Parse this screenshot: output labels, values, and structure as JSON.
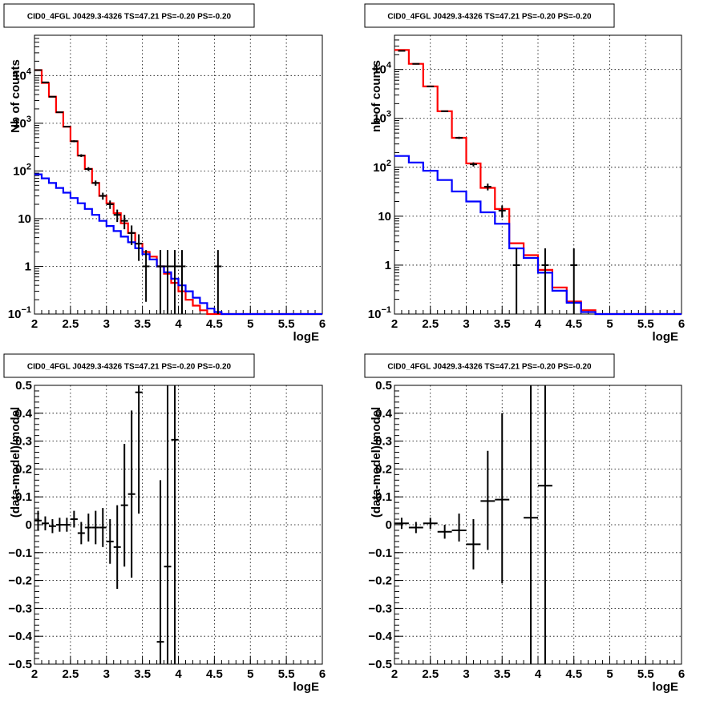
{
  "chart_data": [
    {
      "type": "histogram",
      "title": "CID0_4FGL J0429.3-4326 TS=47.21 PS=-0.20 PS=-0.20",
      "xlabel": "logE",
      "ylabel": "Nb of counts",
      "xlim": [
        2,
        6
      ],
      "ylim": [
        0.1,
        70000
      ],
      "yscale": "log",
      "grid": true,
      "x_ticks": [
        "2",
        "2.5",
        "3",
        "3.5",
        "4",
        "4.5",
        "5",
        "5.5",
        "6"
      ],
      "y_ticks": [
        {
          "value": 10000,
          "base": "10",
          "exp": "4"
        },
        {
          "value": 1000,
          "base": "10",
          "exp": "3"
        },
        {
          "value": 100,
          "base": "10",
          "exp": "2"
        },
        {
          "value": 10,
          "base": "10",
          "exp": ""
        },
        {
          "value": 1,
          "base": "1",
          "exp": ""
        },
        {
          "value": 0.1,
          "base": "10",
          "exp": "−1"
        }
      ],
      "bin_edges": [
        2,
        2.1,
        2.2,
        2.3,
        2.4,
        2.5,
        2.6,
        2.7,
        2.8,
        2.9,
        3,
        3.1,
        3.2,
        3.3,
        3.4,
        3.5,
        3.6,
        3.7,
        3.8,
        3.9,
        4,
        4.1,
        4.2,
        4.3,
        4.4,
        4.5,
        4.6,
        4.7,
        4.8,
        4.9,
        5,
        5.1,
        5.2,
        5.3,
        5.4,
        5.5,
        5.6,
        5.7,
        5.8,
        5.9,
        6
      ],
      "series": [
        {
          "color": "#ff0000",
          "values": [
            13000,
            7000,
            3600,
            1700,
            850,
            420,
            210,
            110,
            56,
            30,
            21,
            13,
            8,
            5,
            3,
            2,
            1.6,
            1,
            0.7,
            0.45,
            0.3,
            0.2,
            0.15,
            0.12,
            0.1,
            0.1,
            0.1,
            0.1,
            0.1,
            0.1,
            0.1,
            0.1,
            0.1,
            0.1,
            0.1,
            0.1,
            0.1,
            0.1,
            0.1,
            0.1
          ]
        },
        {
          "color": "#0000ff",
          "values": [
            85,
            70,
            56,
            44,
            35,
            27,
            21,
            16,
            12,
            9,
            7,
            5.5,
            4.2,
            3.2,
            2.4,
            1.8,
            1.4,
            1,
            0.75,
            0.55,
            0.4,
            0.3,
            0.22,
            0.17,
            0.13,
            0.11,
            0.1,
            0.1,
            0.1,
            0.1,
            0.1,
            0.1,
            0.1,
            0.1,
            0.1,
            0.1,
            0.1,
            0.1,
            0.1,
            0.1
          ]
        }
      ],
      "points": [
        {
          "x": 2.05,
          "y": 13000,
          "lo": 12800,
          "hi": 13200
        },
        {
          "x": 2.15,
          "y": 7200,
          "lo": 7050,
          "hi": 7350
        },
        {
          "x": 2.25,
          "y": 3600,
          "lo": 3500,
          "hi": 3700
        },
        {
          "x": 2.35,
          "y": 1700,
          "lo": 1650,
          "hi": 1750
        },
        {
          "x": 2.45,
          "y": 850,
          "lo": 820,
          "hi": 880
        },
        {
          "x": 2.55,
          "y": 420,
          "lo": 400,
          "hi": 440
        },
        {
          "x": 2.65,
          "y": 210,
          "lo": 196,
          "hi": 224
        },
        {
          "x": 2.75,
          "y": 110,
          "lo": 100,
          "hi": 120
        },
        {
          "x": 2.85,
          "y": 56,
          "lo": 49,
          "hi": 63
        },
        {
          "x": 2.95,
          "y": 30,
          "lo": 25,
          "hi": 35
        },
        {
          "x": 3.05,
          "y": 20,
          "lo": 16,
          "hi": 24
        },
        {
          "x": 3.15,
          "y": 12,
          "lo": 8.5,
          "hi": 15.5
        },
        {
          "x": 3.25,
          "y": 9,
          "lo": 6,
          "hi": 12
        },
        {
          "x": 3.35,
          "y": 5,
          "lo": 2.8,
          "hi": 7.2
        },
        {
          "x": 3.45,
          "y": 3,
          "lo": 1.3,
          "hi": 4.7
        },
        {
          "x": 3.55,
          "y": 1,
          "lo": 0.18,
          "hi": 2.2
        },
        {
          "x": 3.75,
          "y": 1,
          "lo": 0.1,
          "hi": 2.2
        },
        {
          "x": 3.85,
          "y": 1,
          "lo": 0.1,
          "hi": 2.2
        },
        {
          "x": 3.95,
          "y": 1,
          "lo": 0.1,
          "hi": 2.2
        },
        {
          "x": 4.05,
          "y": 1,
          "lo": 0.1,
          "hi": 2.2
        },
        {
          "x": 4.55,
          "y": 1,
          "lo": 0.1,
          "hi": 2.2
        }
      ]
    },
    {
      "type": "histogram",
      "title": "CID0_4FGL J0429.3-4326 TS=47.21 PS=-0.20 PS=-0.20",
      "xlabel": "logE",
      "ylabel": "nb of counts",
      "xlim": [
        2,
        6
      ],
      "ylim": [
        0.1,
        50000
      ],
      "yscale": "log",
      "grid": true,
      "x_ticks": [
        "2",
        "2.5",
        "3",
        "3.5",
        "4",
        "4.5",
        "5",
        "5.5",
        "6"
      ],
      "y_ticks": [
        {
          "value": 10000,
          "base": "10",
          "exp": "4"
        },
        {
          "value": 1000,
          "base": "10",
          "exp": "3"
        },
        {
          "value": 100,
          "base": "10",
          "exp": "2"
        },
        {
          "value": 10,
          "base": "10",
          "exp": ""
        },
        {
          "value": 1,
          "base": "1",
          "exp": ""
        },
        {
          "value": 0.1,
          "base": "10",
          "exp": "−1"
        }
      ],
      "bin_edges": [
        2,
        2.2,
        2.4,
        2.6,
        2.8,
        3,
        3.2,
        3.4,
        3.6,
        3.8,
        4,
        4.2,
        4.4,
        4.6,
        4.8,
        5,
        5.2,
        5.4,
        5.6,
        5.8,
        6
      ],
      "series": [
        {
          "color": "#ff0000",
          "values": [
            25000,
            13000,
            4500,
            1400,
            400,
            120,
            38,
            14,
            2.8,
            1.6,
            0.8,
            0.35,
            0.18,
            0.12,
            0.1,
            0.1,
            0.1,
            0.1,
            0.1,
            0.1
          ]
        },
        {
          "color": "#0000ff",
          "values": [
            170,
            125,
            85,
            55,
            32,
            20,
            12,
            7,
            2.2,
            1.4,
            0.7,
            0.3,
            0.17,
            0.11,
            0.1,
            0.1,
            0.1,
            0.1,
            0.1,
            0.1
          ]
        }
      ],
      "points": [
        {
          "x": 2.1,
          "y": 24000,
          "lo": 23800,
          "hi": 24200
        },
        {
          "x": 2.3,
          "y": 13000,
          "lo": 12850,
          "hi": 13150
        },
        {
          "x": 2.5,
          "y": 4500,
          "lo": 4400,
          "hi": 4600
        },
        {
          "x": 2.7,
          "y": 1400,
          "lo": 1360,
          "hi": 1440
        },
        {
          "x": 2.9,
          "y": 400,
          "lo": 380,
          "hi": 420
        },
        {
          "x": 3.1,
          "y": 115,
          "lo": 104,
          "hi": 126
        },
        {
          "x": 3.3,
          "y": 40,
          "lo": 33.7,
          "hi": 46.3
        },
        {
          "x": 3.5,
          "y": 13,
          "lo": 9.4,
          "hi": 16.6
        },
        {
          "x": 3.7,
          "y": 1,
          "lo": 0.1,
          "hi": 2.2
        },
        {
          "x": 4.1,
          "y": 1,
          "lo": 0.1,
          "hi": 2.2
        },
        {
          "x": 4.5,
          "y": 1,
          "lo": 0.1,
          "hi": 2.2
        }
      ]
    },
    {
      "type": "scatter",
      "title": "CID0_4FGL J0429.3-4326 TS=47.21 PS=-0.20 PS=-0.20",
      "xlabel": "logE",
      "ylabel": "(data-model)/model",
      "xlim": [
        2,
        6
      ],
      "ylim": [
        -0.5,
        0.5
      ],
      "grid": true,
      "x_ticks": [
        "2",
        "2.5",
        "3",
        "3.5",
        "4",
        "4.5",
        "5",
        "5.5",
        "6"
      ],
      "y_ticks": [
        "−0.5",
        "−0.4",
        "−0.3",
        "−0.2",
        "−0.1",
        "0",
        "0.1",
        "0.2",
        "0.3",
        "0.4",
        "0.5"
      ],
      "xerr": 0.05,
      "points": [
        {
          "x": 2.05,
          "y": 0.015,
          "lo": -0.02,
          "hi": 0.05
        },
        {
          "x": 2.15,
          "y": 0.005,
          "lo": -0.02,
          "hi": 0.03
        },
        {
          "x": 2.25,
          "y": -0.005,
          "lo": -0.03,
          "hi": 0.02
        },
        {
          "x": 2.35,
          "y": 0.0,
          "lo": -0.025,
          "hi": 0.025
        },
        {
          "x": 2.45,
          "y": 0.0,
          "lo": -0.025,
          "hi": 0.025
        },
        {
          "x": 2.55,
          "y": 0.02,
          "lo": -0.01,
          "hi": 0.05
        },
        {
          "x": 2.65,
          "y": -0.03,
          "lo": -0.07,
          "hi": 0.01
        },
        {
          "x": 2.75,
          "y": -0.01,
          "lo": -0.06,
          "hi": 0.04
        },
        {
          "x": 2.85,
          "y": -0.01,
          "lo": -0.07,
          "hi": 0.05
        },
        {
          "x": 2.95,
          "y": -0.01,
          "lo": -0.08,
          "hi": 0.06
        },
        {
          "x": 3.05,
          "y": -0.06,
          "lo": -0.14,
          "hi": 0.02
        },
        {
          "x": 3.15,
          "y": -0.08,
          "lo": -0.23,
          "hi": 0.07
        },
        {
          "x": 3.25,
          "y": 0.07,
          "lo": -0.15,
          "hi": 0.29
        },
        {
          "x": 3.35,
          "y": 0.11,
          "lo": -0.19,
          "hi": 0.41
        },
        {
          "x": 3.45,
          "y": 0.475,
          "lo": 0.04,
          "hi": 0.5
        },
        {
          "x": 3.75,
          "y": -0.42,
          "lo": -0.5,
          "hi": 0.16
        },
        {
          "x": 3.85,
          "y": -0.15,
          "lo": -0.5,
          "hi": 0.5
        },
        {
          "x": 3.95,
          "y": 0.305,
          "lo": -0.5,
          "hi": 0.5
        }
      ]
    },
    {
      "type": "scatter",
      "title": "CID0_4FGL J0429.3-4326 TS=47.21 PS=-0.20 PS=-0.20",
      "xlabel": "logE",
      "ylabel": "(data-model)/model",
      "xlim": [
        2,
        6
      ],
      "ylim": [
        -0.5,
        0.5
      ],
      "grid": true,
      "x_ticks": [
        "2",
        "2.5",
        "3",
        "3.5",
        "4",
        "4.5",
        "5",
        "5.5",
        "6"
      ],
      "y_ticks": [
        "−0.5",
        "−0.4",
        "−0.3",
        "−0.2",
        "−0.1",
        "0",
        "0.1",
        "0.2",
        "0.3",
        "0.4",
        "0.5"
      ],
      "xerr": 0.1,
      "points": [
        {
          "x": 2.1,
          "y": 0.005,
          "lo": -0.015,
          "hi": 0.025
        },
        {
          "x": 2.3,
          "y": -0.01,
          "lo": -0.03,
          "hi": 0.01
        },
        {
          "x": 2.5,
          "y": 0.005,
          "lo": -0.015,
          "hi": 0.025
        },
        {
          "x": 2.7,
          "y": -0.025,
          "lo": -0.05,
          "hi": 0.0
        },
        {
          "x": 2.9,
          "y": -0.02,
          "lo": -0.06,
          "hi": 0.04
        },
        {
          "x": 3.1,
          "y": -0.07,
          "lo": -0.16,
          "hi": 0.02
        },
        {
          "x": 3.3,
          "y": 0.085,
          "lo": -0.09,
          "hi": 0.265
        },
        {
          "x": 3.5,
          "y": 0.09,
          "lo": -0.21,
          "hi": 0.4
        },
        {
          "x": 3.9,
          "y": 0.025,
          "lo": -0.5,
          "hi": 0.5
        },
        {
          "x": 4.1,
          "y": 0.14,
          "lo": -0.5,
          "hi": 0.5
        }
      ]
    }
  ]
}
